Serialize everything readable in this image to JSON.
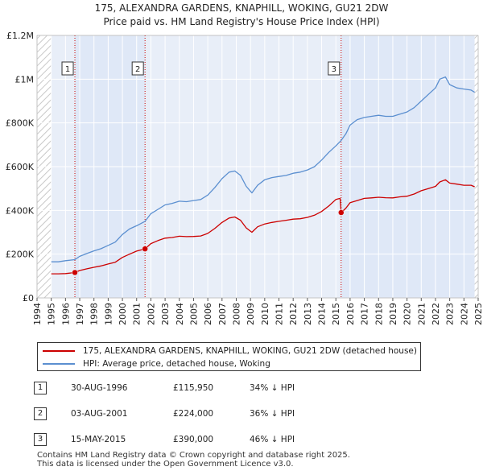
{
  "chart_data": {
    "type": "line",
    "title": "175, ALEXANDRA GARDENS, KNAPHILL, WOKING, GU21 2DW",
    "subtitle": "Price paid vs. HM Land Registry's House Price Index (HPI)",
    "xlabel": "",
    "ylabel": "",
    "xlim": [
      1994.0,
      2025.0
    ],
    "ylim": [
      0,
      1200000
    ],
    "y_ticks": [
      {
        "value": 0,
        "label": "£0"
      },
      {
        "value": 200000,
        "label": "£200K"
      },
      {
        "value": 400000,
        "label": "£400K"
      },
      {
        "value": 600000,
        "label": "£600K"
      },
      {
        "value": 800000,
        "label": "£800K"
      },
      {
        "value": 1000000,
        "label": "£1M"
      },
      {
        "value": 1200000,
        "label": "£1.2M"
      }
    ],
    "x_ticks": [
      "1994",
      "1995",
      "1996",
      "1997",
      "1998",
      "1999",
      "2000",
      "2001",
      "2002",
      "2003",
      "2004",
      "2005",
      "2006",
      "2007",
      "2008",
      "2009",
      "2010",
      "2011",
      "2012",
      "2013",
      "2014",
      "2015",
      "2016",
      "2017",
      "2018",
      "2019",
      "2020",
      "2021",
      "2022",
      "2023",
      "2024",
      "2025"
    ],
    "hatched_ranges": [
      [
        1994.0,
        1995.0
      ],
      [
        2024.75,
        2025.0
      ]
    ],
    "shaded_ranges": [
      [
        1996.66,
        2001.59
      ],
      [
        2015.37,
        2024.75
      ]
    ],
    "series": [
      {
        "name": "175, ALEXANDRA GARDENS, KNAPHILL, WOKING, GU21 2DW (detached house)",
        "color": "#cc0000",
        "points": [
          [
            1995.0,
            110000
          ],
          [
            1995.5,
            110000
          ],
          [
            1996.0,
            111000
          ],
          [
            1996.66,
            115950
          ],
          [
            1997.0,
            125000
          ],
          [
            1997.5,
            133000
          ],
          [
            1998.0,
            140000
          ],
          [
            1998.5,
            146000
          ],
          [
            1999.0,
            155000
          ],
          [
            1999.5,
            163000
          ],
          [
            2000.0,
            185000
          ],
          [
            2000.5,
            200000
          ],
          [
            2001.0,
            214000
          ],
          [
            2001.59,
            224000
          ],
          [
            2002.0,
            248000
          ],
          [
            2002.5,
            262000
          ],
          [
            2003.0,
            273000
          ],
          [
            2003.5,
            276000
          ],
          [
            2004.0,
            282000
          ],
          [
            2004.5,
            280000
          ],
          [
            2005.0,
            281000
          ],
          [
            2005.5,
            283000
          ],
          [
            2006.0,
            295000
          ],
          [
            2006.5,
            318000
          ],
          [
            2007.0,
            345000
          ],
          [
            2007.5,
            365000
          ],
          [
            2007.9,
            370000
          ],
          [
            2008.3,
            355000
          ],
          [
            2008.7,
            320000
          ],
          [
            2009.1,
            300000
          ],
          [
            2009.5,
            325000
          ],
          [
            2010.0,
            338000
          ],
          [
            2010.5,
            345000
          ],
          [
            2011.0,
            350000
          ],
          [
            2011.5,
            355000
          ],
          [
            2012.0,
            360000
          ],
          [
            2012.5,
            362000
          ],
          [
            2013.0,
            368000
          ],
          [
            2013.5,
            378000
          ],
          [
            2014.0,
            395000
          ],
          [
            2014.5,
            420000
          ],
          [
            2015.0,
            450000
          ],
          [
            2015.3,
            455000
          ],
          [
            2015.37,
            390000
          ],
          [
            2015.7,
            410000
          ],
          [
            2016.0,
            435000
          ],
          [
            2016.5,
            445000
          ],
          [
            2017.0,
            455000
          ],
          [
            2017.5,
            457000
          ],
          [
            2018.0,
            460000
          ],
          [
            2018.5,
            458000
          ],
          [
            2019.0,
            457000
          ],
          [
            2019.5,
            462000
          ],
          [
            2020.0,
            465000
          ],
          [
            2020.5,
            475000
          ],
          [
            2021.0,
            490000
          ],
          [
            2021.5,
            500000
          ],
          [
            2022.0,
            510000
          ],
          [
            2022.3,
            530000
          ],
          [
            2022.7,
            540000
          ],
          [
            2023.0,
            525000
          ],
          [
            2023.5,
            520000
          ],
          [
            2024.0,
            515000
          ],
          [
            2024.5,
            515000
          ],
          [
            2024.75,
            508000
          ]
        ]
      },
      {
        "name": "HPI: Average price, detached house, Woking",
        "color": "#5b8fd0",
        "points": [
          [
            1995.0,
            165000
          ],
          [
            1995.5,
            165000
          ],
          [
            1996.0,
            170000
          ],
          [
            1996.66,
            175000
          ],
          [
            1997.0,
            190000
          ],
          [
            1997.5,
            203000
          ],
          [
            1998.0,
            215000
          ],
          [
            1998.5,
            225000
          ],
          [
            1999.0,
            240000
          ],
          [
            1999.5,
            255000
          ],
          [
            2000.0,
            290000
          ],
          [
            2000.5,
            315000
          ],
          [
            2001.0,
            330000
          ],
          [
            2001.59,
            350000
          ],
          [
            2002.0,
            385000
          ],
          [
            2002.5,
            405000
          ],
          [
            2003.0,
            425000
          ],
          [
            2003.5,
            432000
          ],
          [
            2004.0,
            442000
          ],
          [
            2004.5,
            440000
          ],
          [
            2005.0,
            445000
          ],
          [
            2005.5,
            450000
          ],
          [
            2006.0,
            470000
          ],
          [
            2006.5,
            505000
          ],
          [
            2007.0,
            545000
          ],
          [
            2007.5,
            575000
          ],
          [
            2007.9,
            580000
          ],
          [
            2008.3,
            560000
          ],
          [
            2008.7,
            510000
          ],
          [
            2009.1,
            480000
          ],
          [
            2009.5,
            515000
          ],
          [
            2010.0,
            540000
          ],
          [
            2010.5,
            550000
          ],
          [
            2011.0,
            555000
          ],
          [
            2011.5,
            560000
          ],
          [
            2012.0,
            570000
          ],
          [
            2012.5,
            575000
          ],
          [
            2013.0,
            585000
          ],
          [
            2013.5,
            600000
          ],
          [
            2014.0,
            630000
          ],
          [
            2014.5,
            665000
          ],
          [
            2015.0,
            695000
          ],
          [
            2015.37,
            720000
          ],
          [
            2015.7,
            750000
          ],
          [
            2016.0,
            790000
          ],
          [
            2016.5,
            815000
          ],
          [
            2017.0,
            825000
          ],
          [
            2017.5,
            830000
          ],
          [
            2018.0,
            835000
          ],
          [
            2018.5,
            830000
          ],
          [
            2019.0,
            830000
          ],
          [
            2019.5,
            840000
          ],
          [
            2020.0,
            850000
          ],
          [
            2020.5,
            870000
          ],
          [
            2021.0,
            900000
          ],
          [
            2021.5,
            930000
          ],
          [
            2022.0,
            960000
          ],
          [
            2022.3,
            1000000
          ],
          [
            2022.7,
            1010000
          ],
          [
            2023.0,
            975000
          ],
          [
            2023.5,
            960000
          ],
          [
            2024.0,
            955000
          ],
          [
            2024.5,
            950000
          ],
          [
            2024.75,
            940000
          ]
        ]
      }
    ],
    "sales": [
      {
        "marker": "1",
        "date": "30-AUG-1996",
        "year": 1996.66,
        "price": 115950,
        "price_label": "£115,950",
        "hpi_label": "34% ↓ HPI"
      },
      {
        "marker": "2",
        "date": "03-AUG-2001",
        "year": 2001.59,
        "price": 224000,
        "price_label": "£224,000",
        "hpi_label": "36% ↓ HPI"
      },
      {
        "marker": "3",
        "date": "15-MAY-2015",
        "year": 2015.37,
        "price": 390000,
        "price_label": "£390,000",
        "hpi_label": "46% ↓ HPI"
      }
    ],
    "colors": {
      "plot_bg": "#e8eef8",
      "shade_bg": "#dfe8f7",
      "grid": "#ffffff",
      "vline": "#cc0000",
      "red": "#cc0000",
      "blue": "#5b8fd0"
    }
  },
  "legend": {
    "property_label": "175, ALEXANDRA GARDENS, KNAPHILL, WOKING, GU21 2DW (detached house)",
    "hpi_label": "HPI: Average price, detached house, Woking"
  },
  "footer": {
    "line1": "Contains HM Land Registry data © Crown copyright and database right 2025.",
    "line2": "This data is licensed under the Open Government Licence v3.0."
  }
}
